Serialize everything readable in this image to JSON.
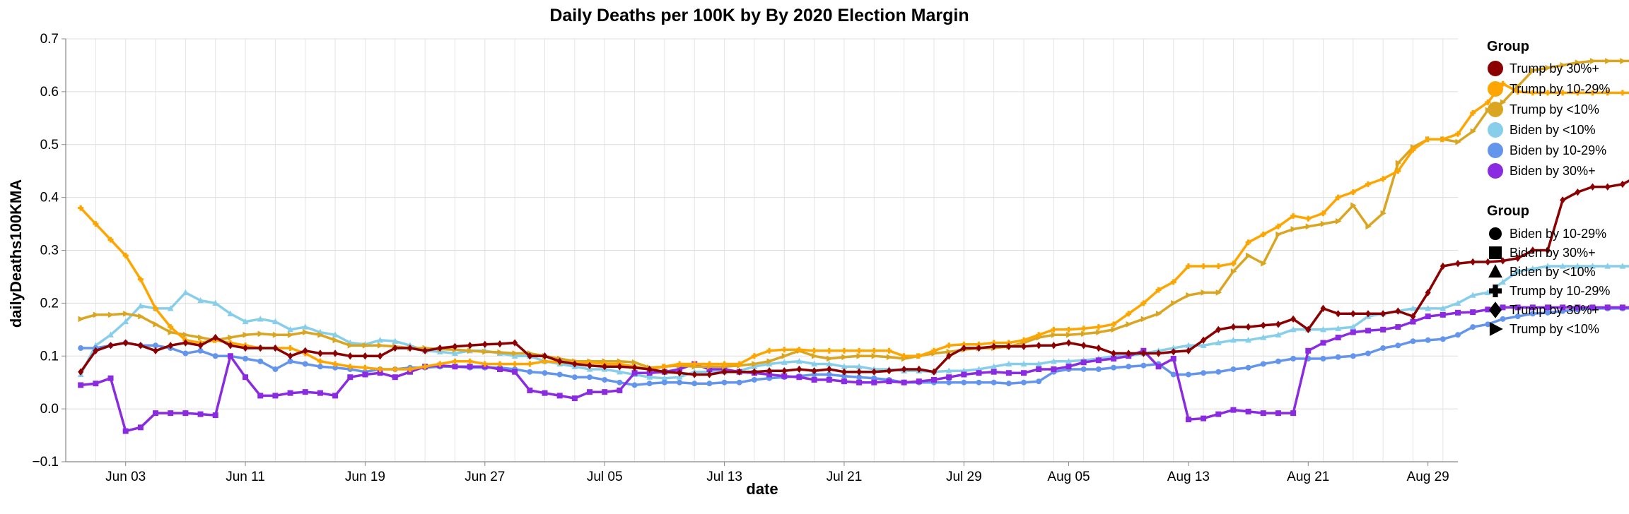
{
  "chart_data": {
    "type": "line",
    "title": "Daily Deaths per 100K by By 2020 Election Margin",
    "xlabel": "date",
    "ylabel": "dailyDeaths100KMA",
    "x_range": [
      "2021-05-30",
      "2021-08-31"
    ],
    "ylim": [
      -0.1,
      0.7
    ],
    "y_ticks": [
      -0.1,
      0.0,
      0.1,
      0.2,
      0.3,
      0.4,
      0.5,
      0.6,
      0.7
    ],
    "y_tick_labels": [
      "−0.1",
      "0.0",
      "0.1",
      "0.2",
      "0.3",
      "0.4",
      "0.5",
      "0.6",
      "0.7"
    ],
    "x_ticks": [
      "2021-06-03",
      "2021-06-11",
      "2021-06-19",
      "2021-06-27",
      "2021-07-05",
      "2021-07-13",
      "2021-07-21",
      "2021-07-29",
      "2021-08-05",
      "2021-08-13",
      "2021-08-21",
      "2021-08-29"
    ],
    "x_tick_labels": [
      "Jun 03",
      "Jun 11",
      "Jun 19",
      "Jun 27",
      "Jul 05",
      "Jul 13",
      "Jul 21",
      "Jul 29",
      "Aug 05",
      "Aug 13",
      "Aug 21",
      "Aug 29"
    ],
    "grid": true,
    "legend_placement": "right",
    "color_legend": {
      "title": "Group",
      "entries": [
        {
          "label": "Trump by 30%+",
          "color": "#8b0000"
        },
        {
          "label": "Trump by 10-29%",
          "color": "#ffa500"
        },
        {
          "label": "Trump by <10%",
          "color": "#daa520"
        },
        {
          "label": "Biden by <10%",
          "color": "#87ceeb"
        },
        {
          "label": "Biden by 10-29%",
          "color": "#6495ed"
        },
        {
          "label": "Biden by 30%+",
          "color": "#8a2be2"
        }
      ]
    },
    "shape_legend": {
      "title": "Group",
      "entries": [
        {
          "label": "Biden by 10-29%",
          "shape": "circle"
        },
        {
          "label": "Biden by 30%+",
          "shape": "square"
        },
        {
          "label": "Biden by <10%",
          "shape": "triangle-up"
        },
        {
          "label": "Trump by 10-29%",
          "shape": "cross"
        },
        {
          "label": "Trump by 30%+",
          "shape": "diamond"
        },
        {
          "label": "Trump by <10%",
          "shape": "triangle-right"
        }
      ]
    },
    "start_date": "2021-05-31",
    "series": [
      {
        "name": "Trump by 30%+",
        "color": "#8b0000",
        "shape": "diamond",
        "values": [
          0.07,
          0.11,
          0.12,
          0.125,
          0.12,
          0.11,
          0.12,
          0.125,
          0.12,
          0.135,
          0.12,
          0.115,
          0.115,
          0.115,
          0.1,
          0.11,
          0.105,
          0.105,
          0.1,
          0.1,
          0.1,
          0.115,
          0.115,
          0.11,
          0.115,
          0.118,
          0.12,
          0.122,
          0.123,
          0.125,
          0.1,
          0.1,
          0.09,
          0.085,
          0.082,
          0.08,
          0.08,
          0.078,
          0.075,
          0.07,
          0.068,
          0.065,
          0.065,
          0.07,
          0.07,
          0.07,
          0.072,
          0.072,
          0.075,
          0.072,
          0.075,
          0.07,
          0.07,
          0.07,
          0.072,
          0.075,
          0.075,
          0.07,
          0.1,
          0.115,
          0.115,
          0.118,
          0.118,
          0.118,
          0.12,
          0.12,
          0.125,
          0.12,
          0.115,
          0.105,
          0.105,
          0.105,
          0.105,
          0.108,
          0.11,
          0.13,
          0.15,
          0.155,
          0.155,
          0.158,
          0.16,
          0.17,
          0.15,
          0.19,
          0.18,
          0.18,
          0.18,
          0.18,
          0.185,
          0.175,
          0.22,
          0.27,
          0.275,
          0.278,
          0.278,
          0.28,
          0.285,
          0.3,
          0.3,
          0.395,
          0.41,
          0.42,
          0.42,
          0.425,
          0.44
        ]
      },
      {
        "name": "Trump by 10-29%",
        "color": "#ffa500",
        "shape": "cross",
        "values": [
          0.38,
          0.35,
          0.32,
          0.29,
          0.245,
          0.19,
          0.155,
          0.13,
          0.125,
          0.13,
          0.125,
          0.12,
          0.115,
          0.115,
          0.115,
          0.105,
          0.09,
          0.085,
          0.08,
          0.078,
          0.075,
          0.075,
          0.075,
          0.08,
          0.085,
          0.09,
          0.09,
          0.085,
          0.085,
          0.085,
          0.085,
          0.09,
          0.088,
          0.088,
          0.088,
          0.085,
          0.085,
          0.08,
          0.075,
          0.08,
          0.085,
          0.085,
          0.085,
          0.085,
          0.085,
          0.1,
          0.11,
          0.112,
          0.112,
          0.11,
          0.11,
          0.11,
          0.11,
          0.11,
          0.11,
          0.1,
          0.1,
          0.11,
          0.12,
          0.122,
          0.122,
          0.125,
          0.125,
          0.13,
          0.14,
          0.15,
          0.15,
          0.152,
          0.155,
          0.16,
          0.18,
          0.2,
          0.225,
          0.24,
          0.27,
          0.27,
          0.27,
          0.275,
          0.315,
          0.33,
          0.345,
          0.365,
          0.36,
          0.37,
          0.4,
          0.41,
          0.425,
          0.435,
          0.45,
          0.49,
          0.51,
          0.51,
          0.52,
          0.56,
          0.58,
          0.615,
          0.6,
          0.598,
          0.598,
          0.598,
          0.598,
          0.598,
          0.598,
          0.598,
          0.598
        ]
      },
      {
        "name": "Trump by <10%",
        "color": "#daa520",
        "shape": "triangle-right",
        "values": [
          0.17,
          0.178,
          0.178,
          0.18,
          0.175,
          0.16,
          0.145,
          0.14,
          0.135,
          0.13,
          0.135,
          0.14,
          0.142,
          0.14,
          0.14,
          0.145,
          0.14,
          0.13,
          0.12,
          0.12,
          0.12,
          0.118,
          0.115,
          0.115,
          0.113,
          0.112,
          0.11,
          0.108,
          0.107,
          0.105,
          0.105,
          0.1,
          0.095,
          0.09,
          0.09,
          0.09,
          0.09,
          0.088,
          0.078,
          0.08,
          0.082,
          0.08,
          0.08,
          0.08,
          0.082,
          0.085,
          0.09,
          0.1,
          0.11,
          0.1,
          0.095,
          0.098,
          0.1,
          0.1,
          0.098,
          0.095,
          0.1,
          0.105,
          0.108,
          0.112,
          0.115,
          0.115,
          0.118,
          0.125,
          0.135,
          0.14,
          0.14,
          0.142,
          0.145,
          0.15,
          0.16,
          0.17,
          0.18,
          0.2,
          0.215,
          0.22,
          0.22,
          0.26,
          0.29,
          0.275,
          0.33,
          0.34,
          0.345,
          0.35,
          0.355,
          0.385,
          0.345,
          0.37,
          0.465,
          0.495,
          0.51,
          0.51,
          0.505,
          0.525,
          0.565,
          0.58,
          0.61,
          0.64,
          0.645,
          0.65,
          0.655,
          0.658,
          0.658,
          0.658,
          0.658
        ]
      },
      {
        "name": "Biden by <10%",
        "color": "#87ceeb",
        "shape": "triangle-up",
        "values": [
          0.065,
          0.12,
          0.14,
          0.165,
          0.195,
          0.19,
          0.19,
          0.22,
          0.205,
          0.2,
          0.18,
          0.165,
          0.17,
          0.165,
          0.15,
          0.155,
          0.145,
          0.14,
          0.125,
          0.122,
          0.13,
          0.128,
          0.12,
          0.11,
          0.108,
          0.105,
          0.11,
          0.11,
          0.105,
          0.1,
          0.1,
          0.09,
          0.085,
          0.08,
          0.075,
          0.075,
          0.07,
          0.065,
          0.06,
          0.058,
          0.06,
          0.07,
          0.07,
          0.07,
          0.072,
          0.08,
          0.085,
          0.088,
          0.09,
          0.085,
          0.085,
          0.08,
          0.08,
          0.075,
          0.075,
          0.072,
          0.072,
          0.07,
          0.072,
          0.072,
          0.075,
          0.08,
          0.085,
          0.085,
          0.085,
          0.09,
          0.09,
          0.092,
          0.095,
          0.1,
          0.1,
          0.105,
          0.11,
          0.115,
          0.12,
          0.12,
          0.125,
          0.13,
          0.13,
          0.135,
          0.14,
          0.15,
          0.15,
          0.15,
          0.152,
          0.155,
          0.175,
          0.18,
          0.185,
          0.19,
          0.19,
          0.19,
          0.2,
          0.215,
          0.22,
          0.24,
          0.26,
          0.265,
          0.27,
          0.27,
          0.27,
          0.27,
          0.27,
          0.27,
          0.27
        ]
      },
      {
        "name": "Biden by 10-29%",
        "color": "#6495ed",
        "shape": "circle",
        "values": [
          0.115,
          0.115,
          0.12,
          0.125,
          0.12,
          0.12,
          0.115,
          0.105,
          0.11,
          0.1,
          0.1,
          0.095,
          0.09,
          0.075,
          0.09,
          0.085,
          0.08,
          0.078,
          0.075,
          0.07,
          0.075,
          0.075,
          0.078,
          0.078,
          0.08,
          0.08,
          0.078,
          0.078,
          0.078,
          0.075,
          0.07,
          0.068,
          0.065,
          0.06,
          0.06,
          0.055,
          0.05,
          0.045,
          0.048,
          0.05,
          0.05,
          0.048,
          0.048,
          0.05,
          0.05,
          0.055,
          0.058,
          0.06,
          0.062,
          0.065,
          0.065,
          0.062,
          0.06,
          0.058,
          0.055,
          0.05,
          0.05,
          0.05,
          0.05,
          0.05,
          0.05,
          0.05,
          0.048,
          0.05,
          0.052,
          0.07,
          0.075,
          0.075,
          0.075,
          0.078,
          0.08,
          0.082,
          0.085,
          0.065,
          0.065,
          0.068,
          0.07,
          0.075,
          0.078,
          0.085,
          0.09,
          0.095,
          0.095,
          0.095,
          0.098,
          0.1,
          0.105,
          0.115,
          0.12,
          0.128,
          0.13,
          0.132,
          0.14,
          0.155,
          0.16,
          0.17,
          0.175,
          0.18,
          0.182,
          0.185,
          0.188,
          0.19,
          0.19,
          0.19,
          0.19
        ]
      },
      {
        "name": "Biden by 30%+",
        "color": "#8a2be2",
        "shape": "square",
        "values": [
          0.045,
          0.048,
          0.058,
          -0.042,
          -0.035,
          -0.008,
          -0.008,
          -0.008,
          -0.01,
          -0.012,
          0.1,
          0.06,
          0.025,
          0.025,
          0.03,
          0.032,
          0.03,
          0.025,
          0.06,
          0.065,
          0.068,
          0.06,
          0.07,
          0.08,
          0.082,
          0.08,
          0.08,
          0.08,
          0.075,
          0.07,
          0.035,
          0.03,
          0.025,
          0.02,
          0.032,
          0.032,
          0.035,
          0.068,
          0.068,
          0.07,
          0.075,
          0.085,
          0.075,
          0.075,
          0.07,
          0.068,
          0.065,
          0.062,
          0.06,
          0.055,
          0.055,
          0.052,
          0.05,
          0.05,
          0.052,
          0.05,
          0.052,
          0.055,
          0.06,
          0.065,
          0.068,
          0.07,
          0.068,
          0.068,
          0.075,
          0.075,
          0.08,
          0.088,
          0.092,
          0.095,
          0.1,
          0.11,
          0.08,
          0.095,
          -0.02,
          -0.018,
          -0.01,
          -0.002,
          -0.005,
          -0.008,
          -0.008,
          -0.008,
          0.11,
          0.125,
          0.135,
          0.145,
          0.148,
          0.15,
          0.155,
          0.165,
          0.175,
          0.178,
          0.182,
          0.183,
          0.188,
          0.192,
          0.192,
          0.192,
          0.192,
          0.192,
          0.192,
          0.192,
          0.192,
          0.192,
          0.192
        ]
      }
    ]
  }
}
